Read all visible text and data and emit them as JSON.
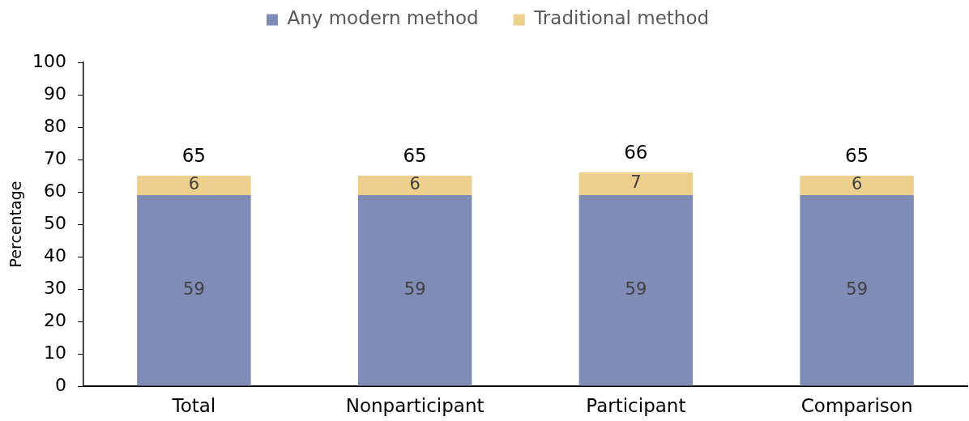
{
  "chart_data": {
    "type": "bar",
    "stacked": true,
    "categories": [
      "Total",
      "Nonparticipant",
      "Participant",
      "Comparison"
    ],
    "series": [
      {
        "name": "Any modern method",
        "color": "#7e8cb6",
        "values": [
          59,
          59,
          59,
          59
        ]
      },
      {
        "name": "Traditional method",
        "color": "#edd08e",
        "values": [
          6,
          6,
          7,
          6
        ]
      }
    ],
    "ylabel": "Percentage",
    "ylim": [
      0,
      100
    ],
    "yticks": [
      0,
      10,
      20,
      30,
      40,
      50,
      60,
      70,
      80,
      90,
      100
    ],
    "grid": false,
    "legend": "top",
    "data_labels": true,
    "totals": [
      "65",
      "65",
      "66",
      "65"
    ]
  }
}
